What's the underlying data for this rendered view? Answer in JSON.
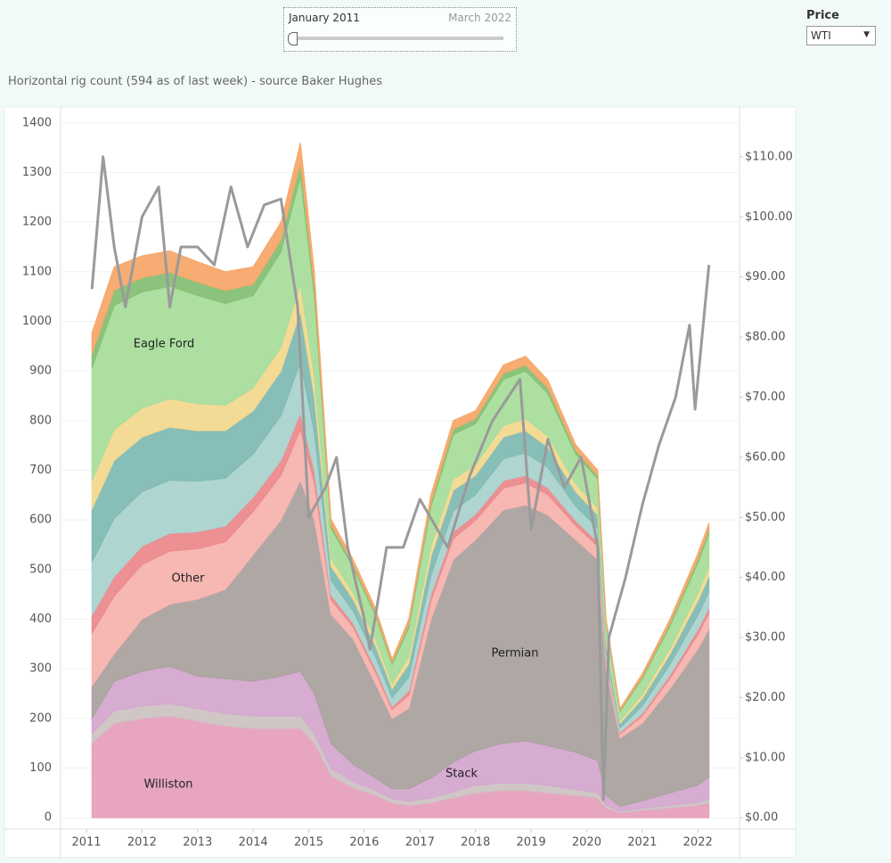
{
  "controls": {
    "range_start": "January 2011",
    "range_end": "March 2022",
    "price_label": "Price",
    "price_choice": "WTI"
  },
  "chart_data": {
    "type": "stacked_area",
    "title": "Horizontal rig count (594 as of last week) - source Baker Hughes",
    "x": [
      2011.1,
      2011.5,
      2012.0,
      2012.5,
      2013.0,
      2013.5,
      2014.0,
      2014.5,
      2014.85,
      2015.1,
      2015.4,
      2015.8,
      2016.2,
      2016.5,
      2016.8,
      2017.2,
      2017.6,
      2018.0,
      2018.5,
      2018.9,
      2019.3,
      2019.8,
      2020.2,
      2020.35,
      2020.6,
      2021.0,
      2021.5,
      2022.0,
      2022.2
    ],
    "xlim": [
      2010.535,
      2022.75
    ],
    "xticks": [
      2011,
      2012,
      2013,
      2014,
      2015,
      2016,
      2017,
      2018,
      2019,
      2020,
      2021,
      2022
    ],
    "ylim": [
      -23,
      1432
    ],
    "yticks": [
      0,
      100,
      200,
      300,
      400,
      500,
      600,
      700,
      800,
      900,
      1000,
      1100,
      1200,
      1300,
      1400
    ],
    "y2lim": [
      -1.9,
      118.3
    ],
    "y2ticks": [
      {
        "value": 0,
        "label": "$0.00"
      },
      {
        "value": 10,
        "label": "$10.00"
      },
      {
        "value": 20,
        "label": "$20.00"
      },
      {
        "value": 30,
        "label": "$30.00"
      },
      {
        "value": 40,
        "label": "$40.00"
      },
      {
        "value": 50,
        "label": "$50.00"
      },
      {
        "value": 60,
        "label": "$60.00"
      },
      {
        "value": 70,
        "label": "$70.00"
      },
      {
        "value": 80,
        "label": "$80.00"
      },
      {
        "value": 90,
        "label": "$90.00"
      },
      {
        "value": 100,
        "label": "$100.00"
      },
      {
        "value": 110,
        "label": "$110.00"
      }
    ],
    "grid": true,
    "series": [
      {
        "name": "Williston",
        "color": "#e6a0bd",
        "values": [
          150,
          190,
          200,
          205,
          195,
          185,
          180,
          180,
          180,
          150,
          85,
          60,
          45,
          30,
          25,
          30,
          40,
          50,
          55,
          55,
          50,
          45,
          40,
          20,
          10,
          15,
          20,
          25,
          30
        ]
      },
      {
        "name": null,
        "color": "#cdc3c3",
        "values": [
          20,
          25,
          25,
          25,
          25,
          25,
          25,
          25,
          25,
          20,
          15,
          12,
          10,
          8,
          8,
          10,
          12,
          15,
          15,
          15,
          15,
          12,
          10,
          5,
          3,
          4,
          5,
          6,
          7
        ]
      },
      {
        "name": "Stack",
        "color": "#d4a8cf",
        "values": [
          30,
          60,
          70,
          75,
          65,
          70,
          70,
          80,
          90,
          80,
          50,
          35,
          25,
          20,
          25,
          40,
          60,
          70,
          80,
          85,
          80,
          75,
          65,
          20,
          10,
          15,
          25,
          35,
          45
        ]
      },
      {
        "name": "Permian",
        "color": "#aaa29f",
        "values": [
          65,
          55,
          105,
          125,
          155,
          180,
          255,
          315,
          385,
          350,
          260,
          253,
          190,
          142,
          162,
          320,
          408,
          425,
          470,
          475,
          465,
          428,
          405,
          255,
          137,
          156,
          210,
          274,
          298
        ]
      },
      {
        "name": "Other",
        "color": "#f7b3ae",
        "values": [
          107,
          117,
          110,
          107,
          102,
          96,
          87,
          90,
          102,
          75,
          29,
          24,
          23,
          18,
          27,
          38,
          42,
          39,
          44,
          45,
          41,
          29,
          27,
          15,
          9,
          15,
          21,
          29,
          32
        ]
      },
      {
        "name": null,
        "color": "#eb8a8d",
        "values": [
          36,
          39,
          37,
          36,
          34,
          32,
          29,
          30,
          34,
          25,
          10,
          8,
          8,
          6,
          9,
          13,
          14,
          13,
          15,
          15,
          14,
          10,
          9,
          5,
          3,
          5,
          7,
          10,
          11
        ]
      },
      {
        "name": null,
        "color": "#abd3cf",
        "values": [
          107,
          117,
          110,
          107,
          102,
          96,
          87,
          90,
          102,
          75,
          29,
          24,
          23,
          18,
          27,
          38,
          42,
          39,
          44,
          45,
          41,
          29,
          27,
          15,
          9,
          15,
          21,
          29,
          32
        ]
      },
      {
        "name": null,
        "color": "#82bab4",
        "values": [
          107,
          117,
          110,
          107,
          102,
          96,
          87,
          90,
          102,
          75,
          29,
          24,
          23,
          18,
          27,
          38,
          42,
          39,
          44,
          45,
          41,
          29,
          27,
          15,
          9,
          15,
          21,
          29,
          32
        ]
      },
      {
        "name": null,
        "color": "#f3d98f",
        "values": [
          57,
          62,
          58,
          57,
          54,
          51,
          46,
          48,
          54,
          40,
          15,
          13,
          12,
          10,
          14,
          20,
          22,
          21,
          23,
          24,
          22,
          15,
          14,
          8,
          5,
          8,
          11,
          15,
          17
        ]
      },
      {
        "name": "Eagle Ford",
        "color": "#a9dd9c",
        "values": [
          227,
          250,
          234,
          227,
          218,
          205,
          186,
          192,
          218,
          160,
          61,
          51,
          48,
          38,
          58,
          80,
          90,
          83,
          93,
          96,
          86,
          61,
          58,
          32,
          19,
          32,
          45,
          61,
          68
        ]
      },
      {
        "name": null,
        "color": "#86c075",
        "values": [
          28,
          31,
          29,
          28,
          27,
          26,
          23,
          24,
          27,
          20,
          8,
          6,
          6,
          5,
          7,
          10,
          11,
          10,
          12,
          12,
          11,
          8,
          7,
          4,
          2,
          4,
          6,
          8,
          9
        ]
      },
      {
        "name": null,
        "color": "#f5a86a",
        "values": [
          43,
          47,
          44,
          43,
          41,
          38,
          35,
          36,
          41,
          30,
          11,
          10,
          9,
          7,
          11,
          15,
          17,
          16,
          17,
          18,
          16,
          11,
          11,
          6,
          4,
          6,
          8,
          11,
          13
        ]
      }
    ],
    "price": {
      "name": "WTI",
      "color": "#9a9a9a",
      "axis": "y2",
      "x": [
        2011.1,
        2011.3,
        2011.5,
        2011.7,
        2012.0,
        2012.3,
        2012.5,
        2012.7,
        2013.0,
        2013.3,
        2013.6,
        2013.9,
        2014.2,
        2014.5,
        2014.8,
        2015.0,
        2015.3,
        2015.5,
        2015.7,
        2016.0,
        2016.1,
        2016.4,
        2016.7,
        2017.0,
        2017.5,
        2017.9,
        2018.3,
        2018.8,
        2019.0,
        2019.3,
        2019.6,
        2019.9,
        2020.2,
        2020.3,
        2020.4,
        2020.7,
        2021.0,
        2021.3,
        2021.6,
        2021.85,
        2021.95,
        2022.2
      ],
      "values": [
        88,
        110,
        95,
        85,
        100,
        105,
        85,
        95,
        95,
        92,
        105,
        95,
        102,
        103,
        85,
        50,
        55,
        60,
        45,
        33,
        28,
        45,
        45,
        53,
        45,
        57,
        66,
        73,
        48,
        63,
        55,
        60,
        45,
        3,
        30,
        40,
        52,
        62,
        70,
        82,
        68,
        92
      ]
    }
  }
}
